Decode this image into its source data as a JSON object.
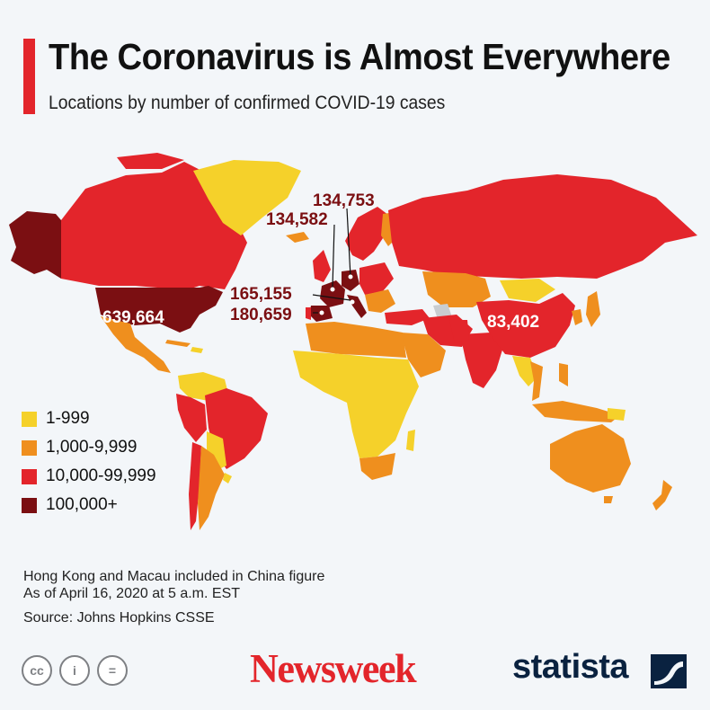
{
  "header": {
    "title": "The Coronavirus is Almost Everywhere",
    "subtitle": "Locations by number of confirmed COVID-19 cases"
  },
  "colors": {
    "background": "#f3f6f9",
    "accent": "#e3252b",
    "tier_1": "#f5d12a",
    "tier_2": "#ef8f1e",
    "tier_3": "#e3252b",
    "tier_4": "#7b0f12",
    "no_data": "#c9cdd1"
  },
  "legend": {
    "items": [
      {
        "label": "1-999",
        "color": "#f5d12a"
      },
      {
        "label": "1,000-9,999",
        "color": "#ef8f1e"
      },
      {
        "label": "10,000-99,999",
        "color": "#e3252b"
      },
      {
        "label": "100,000+",
        "color": "#7b0f12"
      }
    ]
  },
  "callouts": {
    "usa": "639,664",
    "china": "83,402",
    "germany": "134,753",
    "france": "134,582",
    "italy": "165,155",
    "spain": "180,659"
  },
  "notes": {
    "line1": "Hong Kong and Macau included in China figure",
    "line2": "As of April 16, 2020 at 5 a.m. EST",
    "source": "Source: Johns Hopkins CSSE"
  },
  "footer": {
    "cc_icons": [
      "cc-icon",
      "by-icon",
      "nd-icon"
    ],
    "cc_glyphs": [
      "cc",
      "i",
      "="
    ],
    "newsweek_logo": "Newsweek",
    "statista_logo": "statista"
  }
}
